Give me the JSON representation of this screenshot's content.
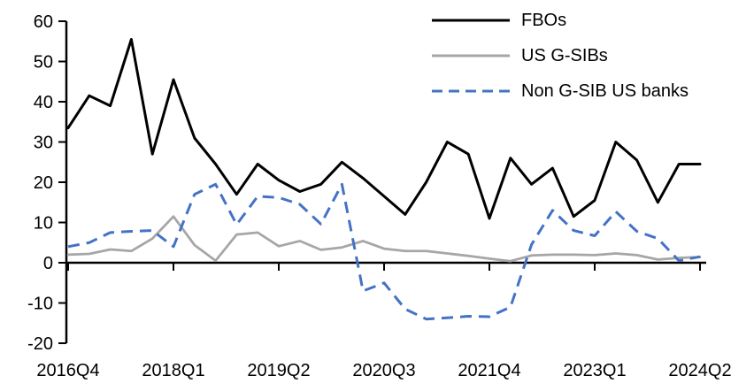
{
  "chart_data": {
    "type": "line",
    "title": "",
    "xlabel": "",
    "ylabel": "",
    "x_unit": "quarter",
    "n_points": 31,
    "x_ticks": [
      {
        "index": 0,
        "label": "2016Q4"
      },
      {
        "index": 5,
        "label": "2018Q1"
      },
      {
        "index": 10,
        "label": "2019Q2"
      },
      {
        "index": 15,
        "label": "2020Q3"
      },
      {
        "index": 20,
        "label": "2021Q4"
      },
      {
        "index": 25,
        "label": "2023Q1"
      },
      {
        "index": 30,
        "label": "2024Q2"
      }
    ],
    "y_ticks": [
      60,
      50,
      40,
      30,
      20,
      10,
      0,
      -10,
      -20
    ],
    "ylim": [
      -20,
      60
    ],
    "grid": false,
    "legend_position": "top-right-inside",
    "axis_color": "#000000",
    "background_color": "#ffffff",
    "series": [
      {
        "name": "FBOs",
        "color": "#000000",
        "line_style": "solid",
        "values": [
          33.5,
          41.5,
          39,
          55.5,
          27,
          45.5,
          31,
          24.5,
          17,
          24.5,
          20.5,
          17.7,
          19.5,
          25,
          21,
          16.5,
          12,
          20,
          30,
          27,
          11,
          26,
          19.5,
          23.5,
          11.5,
          15.5,
          30,
          25.5,
          15,
          24.5,
          24.5
        ]
      },
      {
        "name": "US G-SIBs",
        "color": "#a6a6a6",
        "line_style": "solid",
        "values": [
          2,
          2.2,
          3.3,
          2.9,
          6,
          11.5,
          4.4,
          0.5,
          7,
          7.5,
          4.1,
          5.4,
          3.2,
          3.8,
          5.4,
          3.5,
          2.9,
          2.9,
          2.3,
          1.7,
          1,
          0.4,
          1.8,
          2,
          2,
          1.9,
          2.3,
          1.9,
          0.8,
          1.2,
          1.4
        ]
      },
      {
        "name": "Non G-SIB US banks",
        "color": "#4472c4",
        "line_style": "dashed",
        "values": [
          4,
          5,
          7.5,
          7.8,
          8,
          4,
          17,
          19.5,
          9.5,
          16.5,
          16.2,
          14.5,
          9.6,
          19.5,
          -7,
          -5,
          -11.5,
          -14,
          -13.7,
          -13.3,
          -13.4,
          -11,
          4.5,
          13,
          8,
          6.7,
          12.7,
          7.8,
          6,
          0.5,
          1.5
        ]
      }
    ]
  }
}
